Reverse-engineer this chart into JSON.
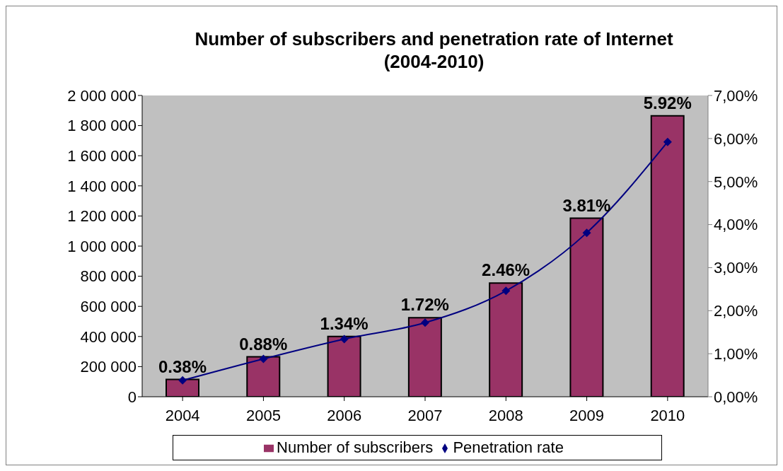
{
  "chart_data": {
    "type": "bar",
    "title": "Number of subscribers and penetration rate of Internet (2004-2010)",
    "categories": [
      "2004",
      "2005",
      "2006",
      "2007",
      "2008",
      "2009",
      "2010"
    ],
    "series": [
      {
        "name": "Number of subscribers",
        "type": "bar",
        "color": "#993366",
        "values": [
          115000,
          265000,
          400000,
          525000,
          755000,
          1185000,
          1865000
        ]
      },
      {
        "name": "Penetration rate",
        "type": "line",
        "axis": "y2",
        "color": "#000080",
        "marker": "diamond",
        "values": [
          0.38,
          0.88,
          1.34,
          1.72,
          2.46,
          3.81,
          5.92
        ],
        "value_labels": [
          "0.38%",
          "0.88%",
          "1.34%",
          "1.72%",
          "2.46%",
          "3.81%",
          "5.92%"
        ]
      }
    ],
    "ylim": [
      0,
      2000000
    ],
    "yticks": [
      0,
      {
        "value": 200000,
        "label": "200 000"
      },
      {
        "value": 400000,
        "label": "400 000"
      },
      {
        "value": 600000,
        "label": "600 000"
      },
      {
        "value": 800000,
        "label": "800 000"
      },
      {
        "value": 1000000,
        "label": "1 000 000"
      },
      {
        "value": 1200000,
        "label": "1 200 000"
      },
      {
        "value": 1400000,
        "label": "1 400 000"
      },
      {
        "value": 1600000,
        "label": "1 600 000"
      },
      {
        "value": 1800000,
        "label": "1 800 000"
      },
      {
        "value": 2000000,
        "label": "2 000 000"
      }
    ],
    "y2lim": [
      0,
      7
    ],
    "y2ticks": [
      {
        "value": 0,
        "label": "0,00%"
      },
      {
        "value": 1,
        "label": "1,00%"
      },
      {
        "value": 2,
        "label": "2,00%"
      },
      {
        "value": 3,
        "label": "3,00%"
      },
      {
        "value": 4,
        "label": "4,00%"
      },
      {
        "value": 5,
        "label": "5,00%"
      },
      {
        "value": 6,
        "label": "6,00%"
      },
      {
        "value": 7,
        "label": "7,00%"
      }
    ],
    "grid": false,
    "legend": "bottom"
  }
}
